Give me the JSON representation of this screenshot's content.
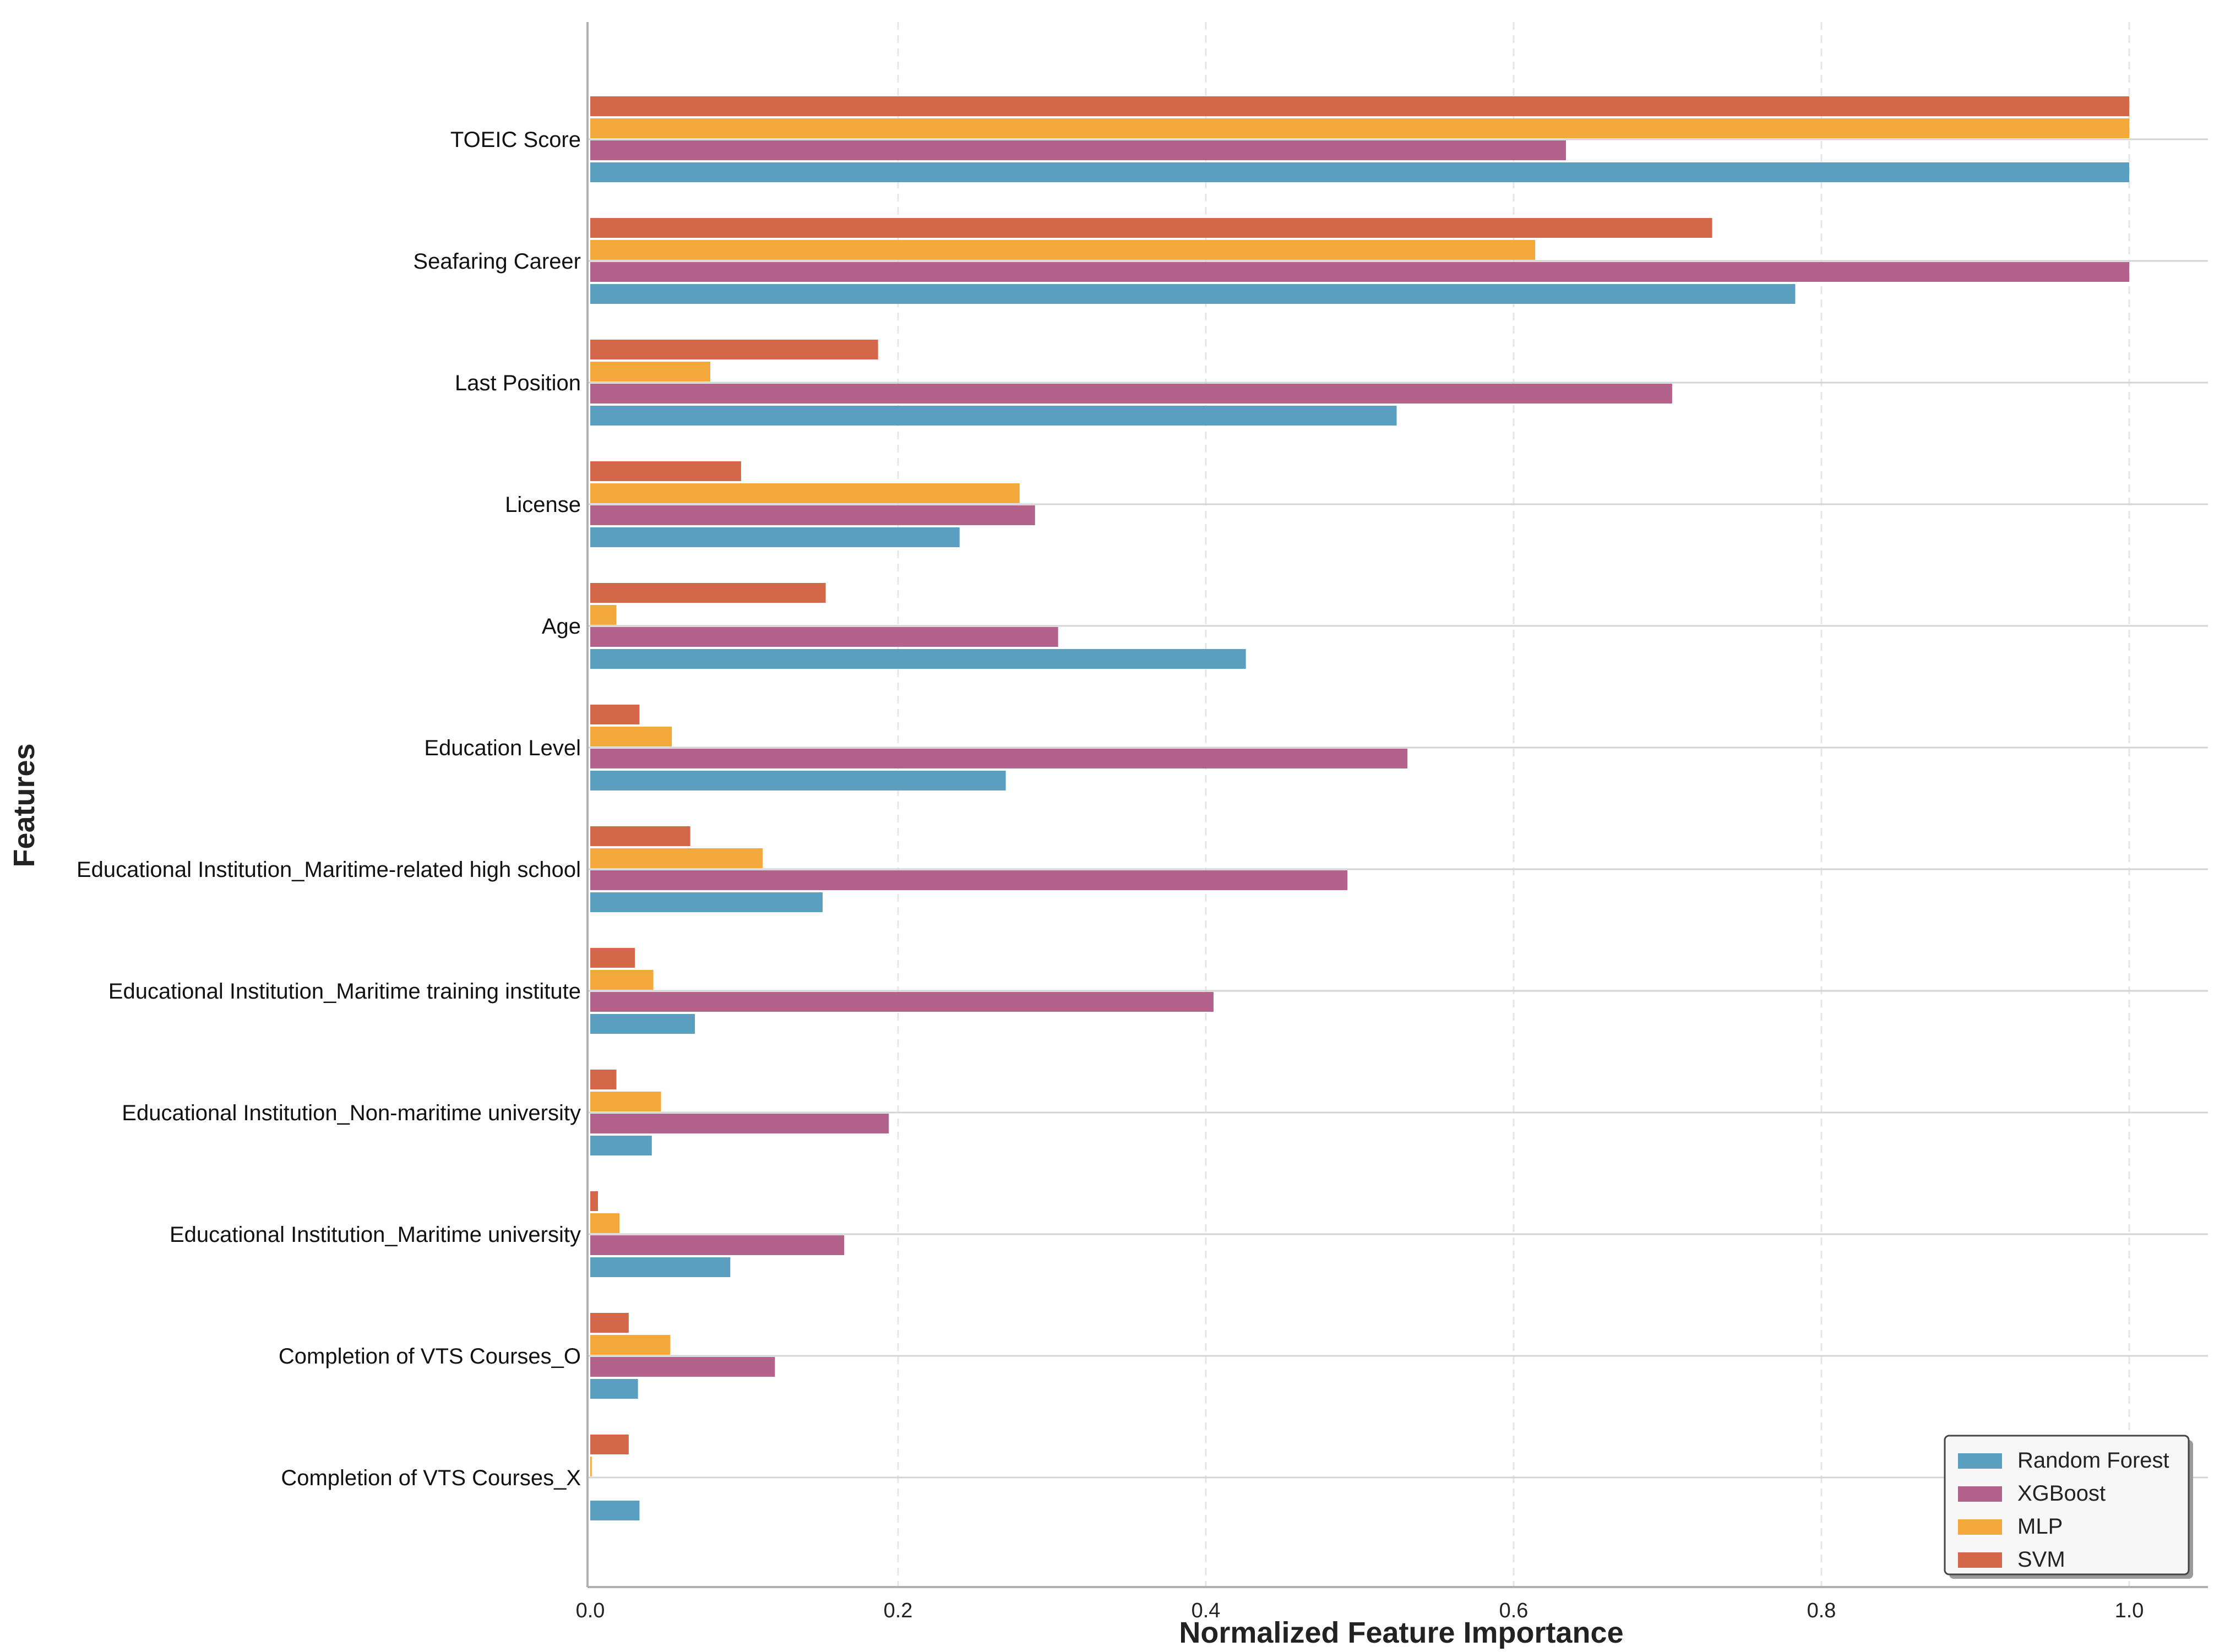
{
  "chart_data": {
    "type": "bar",
    "orientation": "horizontal",
    "xlabel": "Normalized Feature Importance",
    "ylabel": "Features",
    "xlim": [
      0,
      1.05
    ],
    "xticks": [
      "0.0",
      "0.2",
      "0.4",
      "0.6",
      "0.8",
      "1.0"
    ],
    "grid": "on",
    "legend_position": "bottom-right",
    "categories": [
      "TOEIC Score",
      "Seafaring Career",
      "Last Position",
      "License",
      "Age",
      "Education Level",
      "Educational Institution_Maritime-related high school",
      "Educational Institution_Maritime training institute",
      "Educational Institution_Non-maritime university",
      "Educational Institution_Maritime university",
      "Completion of VTS Courses_O",
      "Completion of VTS Courses_X"
    ],
    "series": [
      {
        "name": "Random Forest",
        "color": "#5a9fbf",
        "values": [
          1.0,
          0.783,
          0.524,
          0.24,
          0.426,
          0.27,
          0.151,
          0.068,
          0.04,
          0.091,
          0.031,
          0.032
        ]
      },
      {
        "name": "XGBoost",
        "color": "#b3628b",
        "values": [
          0.634,
          1.0,
          0.703,
          0.289,
          0.304,
          0.531,
          0.492,
          0.405,
          0.194,
          0.165,
          0.12,
          0.0
        ]
      },
      {
        "name": "MLP",
        "color": "#f2a83b",
        "values": [
          1.0,
          0.614,
          0.078,
          0.279,
          0.017,
          0.053,
          0.112,
          0.041,
          0.046,
          0.019,
          0.052,
          0.001
        ]
      },
      {
        "name": "SVM",
        "color": "#d4664a",
        "values": [
          1.0,
          0.729,
          0.187,
          0.098,
          0.153,
          0.032,
          0.065,
          0.029,
          0.017,
          0.005,
          0.025,
          0.025
        ]
      }
    ]
  }
}
